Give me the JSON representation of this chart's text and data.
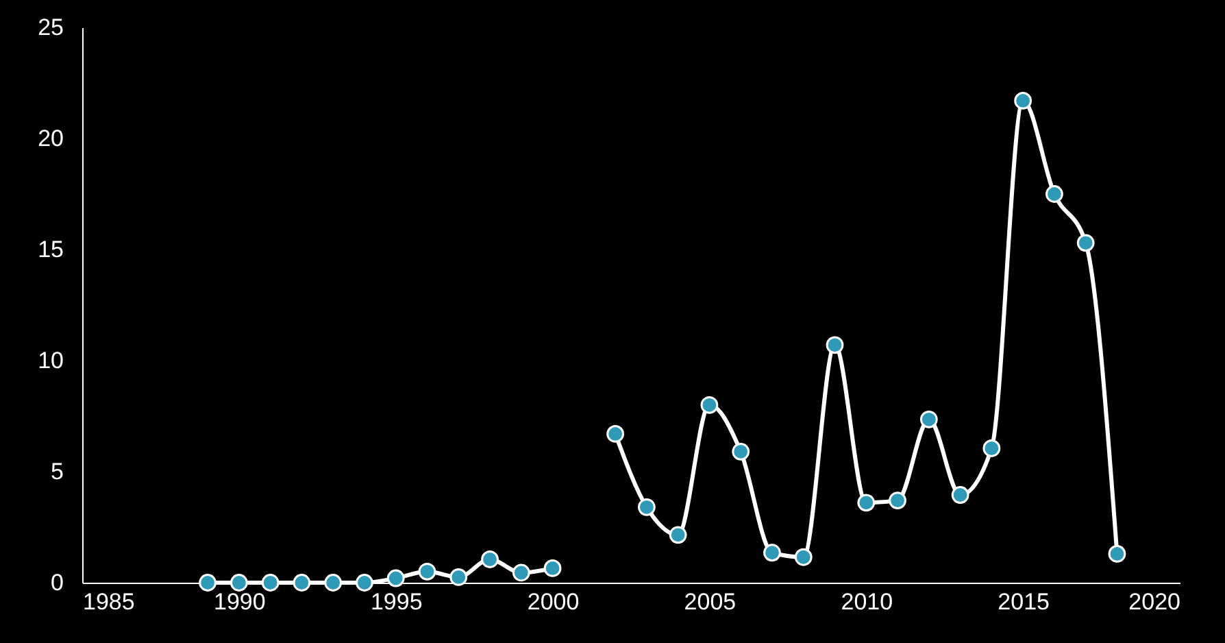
{
  "chart_data": {
    "type": "line",
    "x": [
      1989,
      1990,
      1991,
      1992,
      1993,
      1994,
      1995,
      1996,
      1997,
      1998,
      1999,
      2000,
      2001,
      2002,
      2003,
      2004,
      2005,
      2006,
      2007,
      2008,
      2009,
      2010,
      2011,
      2012,
      2013,
      2014,
      2015,
      2016,
      2017,
      2018
    ],
    "series": [
      {
        "color": "#ffffff",
        "values": [
          0,
          0,
          0,
          0,
          0,
          0,
          0.2,
          0.5,
          0.25,
          1.05,
          0.45,
          0.65,
          null,
          6.7,
          3.4,
          2.15,
          8.0,
          5.9,
          1.35,
          1.15,
          10.7,
          3.6,
          3.7,
          7.35,
          3.95,
          6.05,
          21.7,
          17.5,
          15.3,
          1.3
        ]
      }
    ],
    "marker": "circle",
    "xlim": [
      1985,
      2020
    ],
    "xticks": [
      1985,
      1990,
      1995,
      2000,
      2005,
      2010,
      2015,
      2020
    ],
    "ylim": [
      0,
      25
    ],
    "yticks": [
      0,
      5,
      10,
      15,
      20,
      25
    ],
    "grid": false
  }
}
